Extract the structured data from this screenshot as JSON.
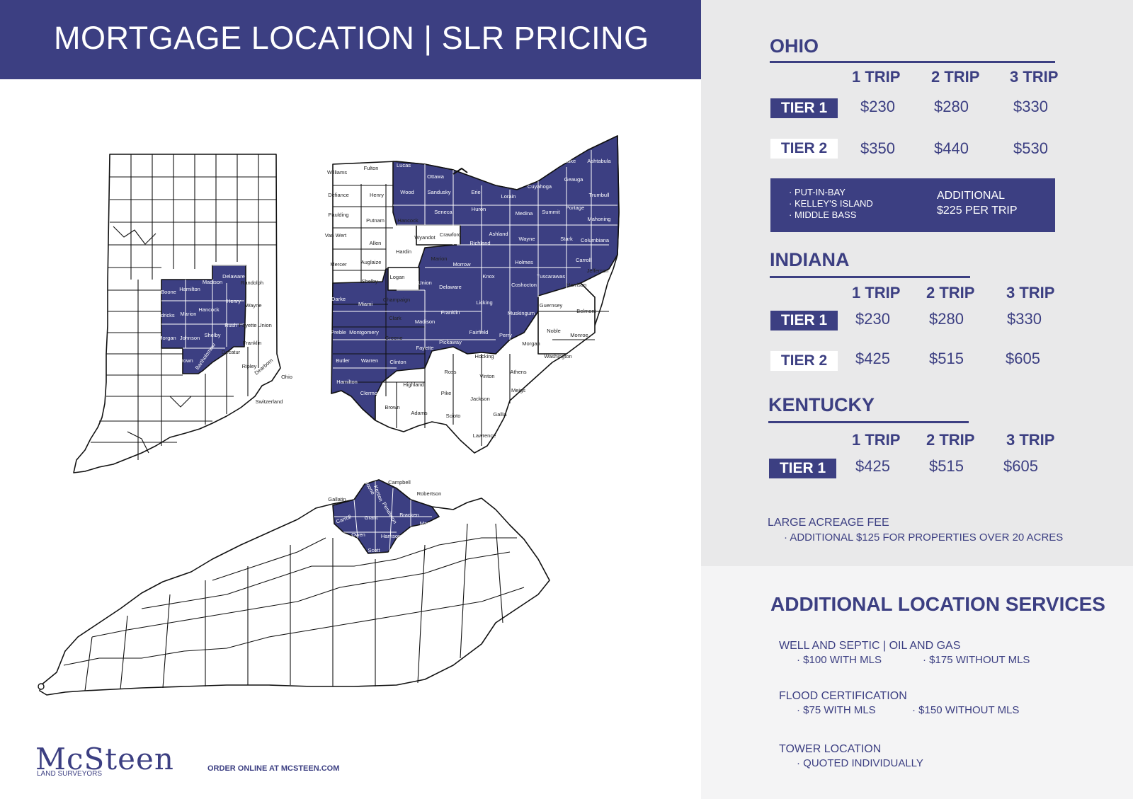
{
  "header": {
    "title": "MORTGAGE LOCATION  |  SLR PRICING"
  },
  "ohio": {
    "heading": "OHIO",
    "columns": [
      "1 TRIP",
      "2 TRIP",
      "3 TRIP"
    ],
    "tiers": [
      {
        "label": "TIER 1",
        "prices": [
          "$230",
          "$280",
          "$330"
        ]
      },
      {
        "label": "TIER 2",
        "prices": [
          "$350",
          "$440",
          "$530"
        ]
      }
    ],
    "islands": {
      "items": [
        "PUT-IN-BAY",
        "KELLEY'S ISLAND",
        "MIDDLE BASS"
      ],
      "note_line1": "ADDITIONAL",
      "note_line2": "$225 PER TRIP"
    }
  },
  "indiana": {
    "heading": "INDIANA",
    "columns": [
      "1 TRIP",
      "2 TRIP",
      "3 TRIP"
    ],
    "tiers": [
      {
        "label": "TIER 1",
        "prices": [
          "$230",
          "$280",
          "$330"
        ]
      },
      {
        "label": "TIER 2",
        "prices": [
          "$425",
          "$515",
          "$605"
        ]
      }
    ]
  },
  "kentucky": {
    "heading": "KENTUCKY",
    "columns": [
      "1 TRIP",
      "2 TRIP",
      "3 TRIP"
    ],
    "tiers": [
      {
        "label": "TIER 1",
        "prices": [
          "$425",
          "$515",
          "$605"
        ]
      }
    ]
  },
  "acreage": {
    "heading": "LARGE ACREAGE FEE",
    "detail": "· ADDITIONAL $125 FOR PROPERTIES OVER 20 ACRES"
  },
  "services": {
    "heading": "ADDITIONAL LOCATION SERVICES",
    "well": {
      "title": "WELL AND SEPTIC | OIL AND GAS",
      "with": "· $100 WITH MLS",
      "without": "· $175 WITHOUT MLS"
    },
    "flood": {
      "title": "FLOOD CERTIFICATION",
      "with": "· $75 WITH MLS",
      "without": "· $150 WITHOUT MLS"
    },
    "tower": {
      "title": "TOWER LOCATION",
      "detail": "· QUOTED INDIVIDUALLY"
    }
  },
  "footer": {
    "logo": "McSteen",
    "logo_sub": "LAND SURVEYORS",
    "order": "ORDER ONLINE AT MCSTEEN.COM"
  },
  "maps": {
    "indiana_labels": [
      "Boone",
      "Hamilton",
      "Madison",
      "Delaware",
      "Randolph",
      "Henry",
      "Wayne",
      "Hendricks",
      "Marion",
      "Hancock",
      "Rush",
      "Fayette",
      "Union",
      "Morgan",
      "Johnson",
      "Shelby",
      "Franklin",
      "Brown",
      "Bartholomew",
      "Decatur",
      "Ripley",
      "Dearborn",
      "Ohio",
      "Switzerland"
    ],
    "ohio_labels": [
      "Williams",
      "Fulton",
      "Lucas",
      "Ottawa",
      "Defiance",
      "Henry",
      "Wood",
      "Sandusky",
      "Erie",
      "Lorain",
      "Cuyahoga",
      "Lake",
      "Ashtabula",
      "Geauga",
      "Trumbull",
      "Paulding",
      "Putnam",
      "Hancock",
      "Seneca",
      "Huron",
      "Medina",
      "Summit",
      "Portage",
      "Mahoning",
      "Van Wert",
      "Allen",
      "Wyandot",
      "Crawford",
      "Richland",
      "Ashland",
      "Wayne",
      "Stark",
      "Columbiana",
      "Hardin",
      "Marion",
      "Morrow",
      "Holmes",
      "Carroll",
      "Mercer",
      "Auglaize",
      "Logan",
      "Union",
      "Delaware",
      "Knox",
      "Coshocton",
      "Tuscarawas",
      "Jefferson",
      "Shelby",
      "Harrison",
      "Darke",
      "Miami",
      "Champaign",
      "Licking",
      "Guernsey",
      "Belmont",
      "Clark",
      "Madison",
      "Franklin",
      "Muskingum",
      "Noble",
      "Preble",
      "Montgomery",
      "Greene",
      "Fairfield",
      "Perry",
      "Monroe",
      "Fayette",
      "Pickaway",
      "Morgan",
      "Butler",
      "Warren",
      "Clinton",
      "Hocking",
      "Washington",
      "Ross",
      "Athens",
      "Hamilton",
      "Clermont",
      "Highland",
      "Vinton",
      "Meigs",
      "Pike",
      "Jackson",
      "Brown",
      "Adams",
      "Scioto",
      "Gallia",
      "Lawrence"
    ],
    "kentucky_labels": [
      "Campbell",
      "Boone",
      "Kenton",
      "Gallatin",
      "Robertson",
      "Carroll",
      "Grant",
      "Pendleton",
      "Bracken",
      "Mason",
      "Owen",
      "Harrison",
      "Scott"
    ]
  }
}
